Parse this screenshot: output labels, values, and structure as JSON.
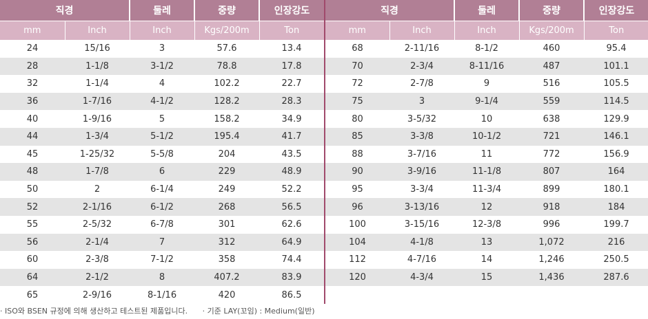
{
  "headers": {
    "group": [
      "직경",
      "둘레",
      "중량",
      "인장강도"
    ],
    "units": [
      "mm",
      "Inch",
      "Inch",
      "Kgs/200m",
      "Ton"
    ]
  },
  "left_rows": [
    [
      "24",
      "15/16",
      "3",
      "57.6",
      "13.4"
    ],
    [
      "28",
      "1-1/8",
      "3-1/2",
      "78.8",
      "17.8"
    ],
    [
      "32",
      "1-1/4",
      "4",
      "102.2",
      "22.7"
    ],
    [
      "36",
      "1-7/16",
      "4-1/2",
      "128.2",
      "28.3"
    ],
    [
      "40",
      "1-9/16",
      "5",
      "158.2",
      "34.9"
    ],
    [
      "44",
      "1-3/4",
      "5-1/2",
      "195.4",
      "41.7"
    ],
    [
      "45",
      "1-25/32",
      "5-5/8",
      "204",
      "43.5"
    ],
    [
      "48",
      "1-7/8",
      "6",
      "229",
      "48.9"
    ],
    [
      "50",
      "2",
      "6-1/4",
      "249",
      "52.2"
    ],
    [
      "52",
      "2-1/16",
      "6-1/2",
      "268",
      "56.5"
    ],
    [
      "55",
      "2-5/32",
      "6-7/8",
      "301",
      "62.6"
    ],
    [
      "56",
      "2-1/4",
      "7",
      "312",
      "64.9"
    ],
    [
      "60",
      "2-3/8",
      "7-1/2",
      "358",
      "74.4"
    ],
    [
      "64",
      "2-1/2",
      "8",
      "407.2",
      "83.9"
    ],
    [
      "65",
      "2-9/16",
      "8-1/16",
      "420",
      "86.5"
    ]
  ],
  "right_rows": [
    [
      "68",
      "2-11/16",
      "8-1/2",
      "460",
      "95.4"
    ],
    [
      "70",
      "2-3/4",
      "8-11/16",
      "487",
      "101.1"
    ],
    [
      "72",
      "2-7/8",
      "9",
      "516",
      "105.5"
    ],
    [
      "75",
      "3",
      "9-1/4",
      "559",
      "114.5"
    ],
    [
      "80",
      "3-5/32",
      "10",
      "638",
      "129.9"
    ],
    [
      "85",
      "3-3/8",
      "10-1/2",
      "721",
      "146.1"
    ],
    [
      "88",
      "3-7/16",
      "11",
      "772",
      "156.9"
    ],
    [
      "90",
      "3-9/16",
      "11-1/8",
      "807",
      "164"
    ],
    [
      "95",
      "3-3/4",
      "11-3/4",
      "899",
      "180.1"
    ],
    [
      "96",
      "3-13/16",
      "12",
      "918",
      "184"
    ],
    [
      "100",
      "3-15/16",
      "12-3/8",
      "996",
      "199.7"
    ],
    [
      "104",
      "4-1/8",
      "13",
      "1,072",
      "216"
    ],
    [
      "112",
      "4-7/16",
      "14",
      "1,246",
      "250.5"
    ],
    [
      "120",
      "4-3/4",
      "15",
      "1,436",
      "287.6"
    ],
    [
      "",
      "",
      "",
      "",
      ""
    ]
  ],
  "notes": [
    "· ISO와 BSEN 규정에 의해 생산하고 테스트된 제품입니다.",
    "· 기준 LAY(꼬임) : Medium(일반)"
  ]
}
